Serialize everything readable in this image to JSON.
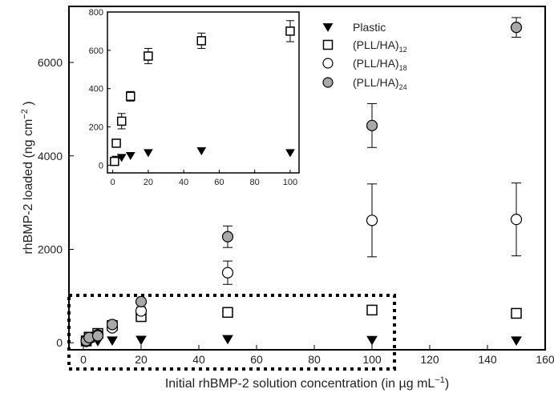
{
  "chart_data": [
    {
      "type": "scatter",
      "xlabel": "Initial rhBMP-2 solution concentration (in µg mL",
      "xlabel_sup": "−1",
      "xlabel_end": ")",
      "ylabel": "rhBMP-2 loaded (ng cm",
      "ylabel_sup": "−2",
      "ylabel_end": " )",
      "xlim": [
        -5,
        160
      ],
      "ylim": [
        -150,
        7200
      ],
      "x_ticks": [
        0,
        20,
        40,
        60,
        80,
        100,
        120,
        140,
        160
      ],
      "y_ticks": [
        0,
        2000,
        4000,
        6000
      ],
      "legend_position": "top-right",
      "series": [
        {
          "name": "Plastic",
          "marker": "triangle-down-filled",
          "x": [
            1,
            2,
            5,
            10,
            20,
            50,
            100,
            150
          ],
          "y": [
            10,
            25,
            30,
            45,
            60,
            75,
            55,
            45
          ],
          "err": [
            0,
            0,
            0,
            0,
            0,
            0,
            0,
            0
          ]
        },
        {
          "name": "(PLL/HA)",
          "name_sub": "12",
          "marker": "square-open",
          "x": [
            1,
            2,
            5,
            10,
            20,
            50,
            100,
            150
          ],
          "y": [
            40,
            120,
            200,
            370,
            560,
            650,
            700,
            630
          ],
          "err": [
            0,
            0,
            50,
            40,
            40,
            40,
            50,
            40
          ]
        },
        {
          "name": "(PLL/HA)",
          "name_sub": "18",
          "marker": "circle-open",
          "x": [
            1,
            2,
            5,
            10,
            20,
            50,
            100,
            150
          ],
          "y": [
            30,
            90,
            170,
            320,
            680,
            1500,
            2620,
            2640
          ],
          "err": [
            0,
            0,
            40,
            50,
            80,
            250,
            780,
            780
          ]
        },
        {
          "name": "(PLL/HA)",
          "name_sub": "24",
          "marker": "circle-gray",
          "x": [
            1,
            2,
            5,
            10,
            20,
            50,
            100,
            150
          ],
          "y": [
            45,
            110,
            150,
            390,
            880,
            2270,
            4650,
            6750
          ],
          "err": [
            0,
            0,
            40,
            40,
            60,
            230,
            470,
            210
          ]
        }
      ]
    },
    {
      "type": "scatter",
      "title": "",
      "xlim": [
        -3,
        105
      ],
      "ylim": [
        -40,
        800
      ],
      "x_ticks": [
        0,
        20,
        40,
        60,
        80,
        100
      ],
      "y_ticks": [
        0,
        200,
        400,
        600,
        800
      ],
      "series": [
        {
          "name": "Plastic",
          "marker": "triangle-down-filled",
          "x": [
            2,
            5,
            10,
            20,
            50,
            100
          ],
          "y": [
            30,
            40,
            50,
            65,
            75,
            65
          ],
          "err": [
            0,
            0,
            0,
            0,
            0,
            0
          ]
        },
        {
          "name": "(PLL/HA)",
          "name_sub": "12",
          "marker": "square-open",
          "x": [
            1,
            2,
            5,
            10,
            20,
            50,
            100
          ],
          "y": [
            20,
            115,
            230,
            360,
            570,
            650,
            700
          ],
          "err": [
            0,
            0,
            40,
            25,
            40,
            40,
            55
          ]
        }
      ]
    }
  ]
}
